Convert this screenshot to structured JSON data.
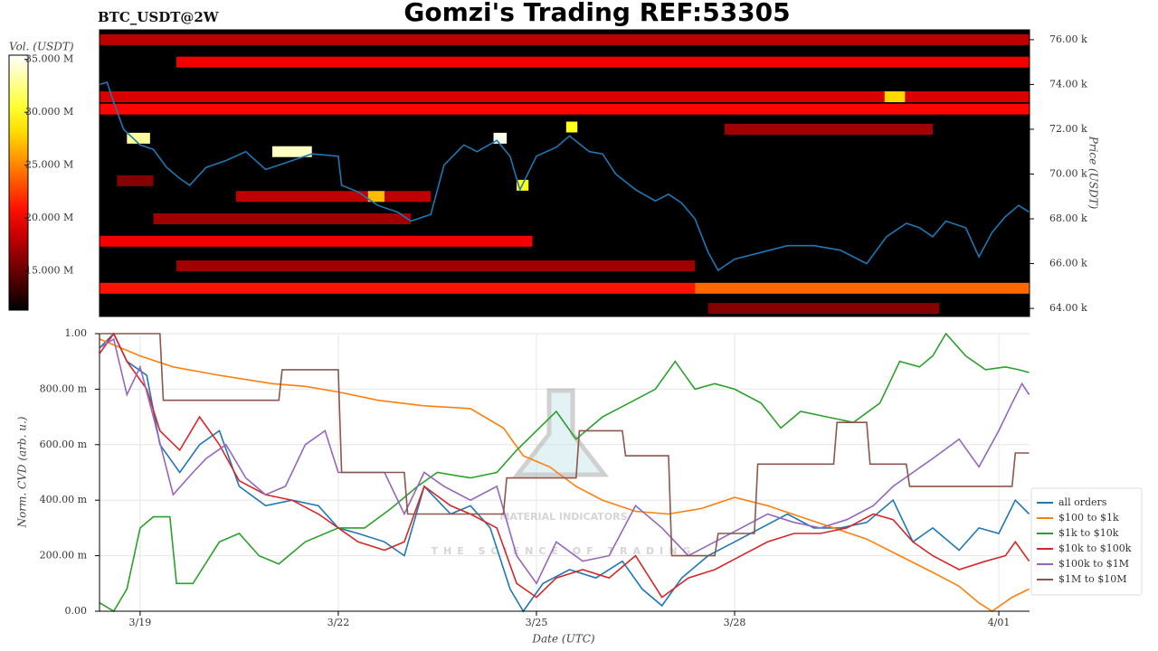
{
  "chart_data": [
    {
      "type": "heatmap",
      "title": "Gomzi's Trading REF:53305",
      "subtitle": "BTC_USDT@2W",
      "xlim": [
        18.385,
        32.465
      ],
      "ylim": [
        63640,
        76440
      ],
      "yticks": [
        {
          "value": 64000,
          "label": "64.00 k"
        },
        {
          "value": 66000,
          "label": "66.00 k"
        },
        {
          "value": 68000,
          "label": "68.00 k"
        },
        {
          "value": 70000,
          "label": "70.00 k"
        },
        {
          "value": 72000,
          "label": "72.00 k"
        },
        {
          "value": 74000,
          "label": "74.00 k"
        },
        {
          "value": 76000,
          "label": "76.00 k"
        }
      ],
      "ylabel": "Price (USDT)",
      "colorbar": {
        "label": "Vol. (USDT)",
        "lim": [
          11300000,
          35400000
        ],
        "ticks": [
          {
            "value": 15000000,
            "label": "15.000 M"
          },
          {
            "value": 20000000,
            "label": "20.000 M"
          },
          {
            "value": 25000000,
            "label": "25.000 M"
          },
          {
            "value": 30000000,
            "label": "30.000 M"
          },
          {
            "value": 35000000,
            "label": "35.000 M"
          }
        ]
      },
      "bands": [
        {
          "price": 76000,
          "x": [
            18.385,
            32.465
          ],
          "volume": 18000000
        },
        {
          "price": 75000,
          "x": [
            19.55,
            32.465
          ],
          "volume": 20000000
        },
        {
          "price": 73450,
          "x": [
            18.385,
            32.465
          ],
          "volume": 19000000
        },
        {
          "price": 72900,
          "x": [
            18.385,
            32.465
          ],
          "volume": 20500000
        },
        {
          "price": 72000,
          "x": [
            27.85,
            31.0
          ],
          "volume": 17000000
        },
        {
          "price": 67000,
          "x": [
            18.385,
            24.94
          ],
          "volume": 20000000
        },
        {
          "price": 65900,
          "x": [
            19.55,
            27.4
          ],
          "volume": 17000000
        },
        {
          "price": 64900,
          "x": [
            18.385,
            27.4
          ],
          "volume": 21000000
        },
        {
          "price": 64900,
          "x": [
            27.4,
            32.465
          ],
          "volume": 24000000
        },
        {
          "price": 68000,
          "x": [
            19.2,
            23.1
          ],
          "volume": 17000000
        },
        {
          "price": 69000,
          "x": [
            20.45,
            23.4
          ],
          "volume": 18000000
        },
        {
          "price": 69700,
          "x": [
            18.65,
            19.2
          ],
          "volume": 16000000
        },
        {
          "price": 64000,
          "x": [
            27.6,
            31.1
          ],
          "volume": 16000000
        },
        {
          "price": 73450,
          "x": [
            30.27,
            30.58
          ],
          "volume": 28000000
        },
        {
          "price": 71600,
          "x": [
            18.8,
            19.15
          ],
          "volume": 33000000
        },
        {
          "price": 71000,
          "x": [
            21.0,
            21.6
          ],
          "volume": 34000000
        },
        {
          "price": 71600,
          "x": [
            24.35,
            24.55
          ],
          "volume": 35000000
        },
        {
          "price": 72100,
          "x": [
            25.45,
            25.62
          ],
          "volume": 30000000
        },
        {
          "price": 69500,
          "x": [
            24.7,
            24.88
          ],
          "volume": 30000000
        },
        {
          "price": 69000,
          "x": [
            22.45,
            22.7
          ],
          "volume": 27000000
        }
      ],
      "price": {
        "color": "#1f77b4",
        "x": [
          18.39,
          18.5,
          18.6,
          18.75,
          19.0,
          19.2,
          19.4,
          19.6,
          19.75,
          20.0,
          20.3,
          20.6,
          20.9,
          21.2,
          21.6,
          22.0,
          22.05,
          22.3,
          22.6,
          22.9,
          23.1,
          23.4,
          23.6,
          23.9,
          24.1,
          24.4,
          24.6,
          24.75,
          25.0,
          25.3,
          25.5,
          25.8,
          26.0,
          26.2,
          26.5,
          26.8,
          27.0,
          27.2,
          27.4,
          27.6,
          27.75,
          28.0,
          28.4,
          28.8,
          29.2,
          29.6,
          30.0,
          30.3,
          30.6,
          30.8,
          31.0,
          31.2,
          31.5,
          31.7,
          31.9,
          32.1,
          32.3,
          32.46
        ],
        "values": [
          74000,
          74100,
          73200,
          72000,
          71300,
          71100,
          70300,
          69800,
          69500,
          70300,
          70600,
          71000,
          70200,
          70500,
          70900,
          70800,
          69500,
          69200,
          68600,
          68300,
          67900,
          68200,
          70400,
          71300,
          71000,
          71500,
          70800,
          69300,
          70800,
          71200,
          71700,
          71000,
          70900,
          70000,
          69300,
          68800,
          69100,
          68700,
          68000,
          66500,
          65700,
          66200,
          66500,
          66800,
          66800,
          66600,
          66000,
          67200,
          67800,
          67600,
          67200,
          67900,
          67600,
          66300,
          67400,
          68100,
          68600,
          68300
        ]
      }
    },
    {
      "type": "line",
      "xlabel": "Date (UTC)",
      "ylabel": "Norm. CVD (arb. u.)",
      "watermark": [
        "MATERIAL INDICATORS",
        "THE SCIENCE OF TRADING"
      ],
      "xlim": [
        18.385,
        32.465
      ],
      "ylim": [
        0,
        1
      ],
      "xticks": [
        {
          "value": 19,
          "label": "3/19"
        },
        {
          "value": 22,
          "label": "3/22"
        },
        {
          "value": 25,
          "label": "3/25"
        },
        {
          "value": 28,
          "label": "3/28"
        },
        {
          "value": 32,
          "label": "4/01"
        }
      ],
      "yticks": [
        {
          "value": 0,
          "label": "0.00"
        },
        {
          "value": 0.2,
          "label": "200.00 m"
        },
        {
          "value": 0.4,
          "label": "400.00 m"
        },
        {
          "value": 0.6,
          "label": "600.00 m"
        },
        {
          "value": 0.8,
          "label": "800.00 m"
        },
        {
          "value": 1,
          "label": "1.00"
        }
      ],
      "grid": true,
      "legend": "lower right",
      "series": [
        {
          "name": "all orders",
          "color": "#1f77b4",
          "x": [
            18.39,
            18.6,
            18.8,
            19.1,
            19.3,
            19.6,
            19.9,
            20.2,
            20.5,
            20.9,
            21.3,
            21.7,
            22.0,
            22.3,
            22.7,
            23.0,
            23.3,
            23.7,
            24.0,
            24.3,
            24.6,
            24.8,
            25.1,
            25.5,
            25.9,
            26.3,
            26.6,
            26.9,
            27.2,
            27.6,
            28.0,
            28.4,
            28.8,
            29.2,
            29.6,
            30.0,
            30.4,
            30.7,
            31.0,
            31.4,
            31.7,
            32.0,
            32.25,
            32.46
          ],
          "values": [
            0.95,
            1.0,
            0.9,
            0.85,
            0.6,
            0.5,
            0.6,
            0.65,
            0.45,
            0.38,
            0.4,
            0.38,
            0.3,
            0.28,
            0.25,
            0.2,
            0.45,
            0.35,
            0.38,
            0.3,
            0.08,
            0.0,
            0.1,
            0.15,
            0.12,
            0.18,
            0.08,
            0.02,
            0.12,
            0.2,
            0.25,
            0.3,
            0.35,
            0.3,
            0.3,
            0.32,
            0.4,
            0.25,
            0.3,
            0.22,
            0.3,
            0.28,
            0.4,
            0.35
          ]
        },
        {
          "name": "$100 to $1k",
          "color": "#ff7f0e",
          "x": [
            18.39,
            19.0,
            19.5,
            20.2,
            21.0,
            21.5,
            22.0,
            22.6,
            23.3,
            24.0,
            24.5,
            24.8,
            25.2,
            25.6,
            26.0,
            26.5,
            27.0,
            27.5,
            28.0,
            28.5,
            29.0,
            29.5,
            30.0,
            30.5,
            31.0,
            31.4,
            31.7,
            31.9,
            32.2,
            32.46
          ],
          "values": [
            0.98,
            0.92,
            0.88,
            0.85,
            0.82,
            0.81,
            0.79,
            0.76,
            0.74,
            0.73,
            0.66,
            0.56,
            0.52,
            0.45,
            0.4,
            0.36,
            0.35,
            0.37,
            0.41,
            0.38,
            0.34,
            0.3,
            0.26,
            0.2,
            0.14,
            0.09,
            0.03,
            0.0,
            0.05,
            0.08
          ]
        },
        {
          "name": "$1k to $10k",
          "color": "#2ca02c",
          "x": [
            18.39,
            18.6,
            18.8,
            19.0,
            19.2,
            19.45,
            19.55,
            19.8,
            20.2,
            20.5,
            20.8,
            21.1,
            21.5,
            22.0,
            22.4,
            22.8,
            23.2,
            23.5,
            24.0,
            24.4,
            24.7,
            25.0,
            25.3,
            25.6,
            26.0,
            26.4,
            26.8,
            27.1,
            27.4,
            27.7,
            28.0,
            28.4,
            28.7,
            29.0,
            29.4,
            29.8,
            30.2,
            30.5,
            30.8,
            31.0,
            31.2,
            31.5,
            31.8,
            32.1,
            32.3,
            32.46
          ],
          "values": [
            0.03,
            0.0,
            0.08,
            0.3,
            0.34,
            0.34,
            0.1,
            0.1,
            0.25,
            0.28,
            0.2,
            0.17,
            0.25,
            0.3,
            0.3,
            0.37,
            0.45,
            0.5,
            0.48,
            0.5,
            0.58,
            0.65,
            0.72,
            0.62,
            0.7,
            0.75,
            0.8,
            0.9,
            0.8,
            0.82,
            0.8,
            0.75,
            0.66,
            0.72,
            0.7,
            0.68,
            0.75,
            0.9,
            0.88,
            0.92,
            1.0,
            0.92,
            0.87,
            0.88,
            0.87,
            0.86
          ]
        },
        {
          "name": "$10k to $100k",
          "color": "#d62728",
          "x": [
            18.39,
            18.6,
            18.8,
            19.1,
            19.3,
            19.6,
            19.9,
            20.2,
            20.5,
            20.9,
            21.3,
            21.7,
            22.0,
            22.3,
            22.7,
            23.0,
            23.3,
            23.7,
            24.0,
            24.4,
            24.7,
            25.0,
            25.3,
            25.7,
            26.1,
            26.5,
            26.9,
            27.3,
            27.7,
            28.1,
            28.5,
            28.9,
            29.3,
            29.7,
            30.1,
            30.4,
            30.7,
            31.0,
            31.4,
            31.8,
            32.1,
            32.25,
            32.46
          ],
          "values": [
            0.93,
            1.0,
            0.9,
            0.8,
            0.65,
            0.58,
            0.7,
            0.6,
            0.47,
            0.42,
            0.4,
            0.35,
            0.3,
            0.25,
            0.22,
            0.25,
            0.45,
            0.38,
            0.35,
            0.3,
            0.1,
            0.05,
            0.12,
            0.15,
            0.12,
            0.2,
            0.05,
            0.12,
            0.15,
            0.2,
            0.25,
            0.28,
            0.28,
            0.3,
            0.35,
            0.33,
            0.25,
            0.2,
            0.15,
            0.18,
            0.2,
            0.25,
            0.18
          ]
        },
        {
          "name": "$100k to $1M",
          "color": "#9467bd",
          "x": [
            18.39,
            18.6,
            18.8,
            19.0,
            19.2,
            19.5,
            19.8,
            20.0,
            20.3,
            20.6,
            20.9,
            21.2,
            21.5,
            21.8,
            22.0,
            22.3,
            22.7,
            23.0,
            23.3,
            23.6,
            24.0,
            24.4,
            24.7,
            25.0,
            25.3,
            25.7,
            26.1,
            26.5,
            26.9,
            27.3,
            27.7,
            28.1,
            28.5,
            28.9,
            29.3,
            29.7,
            30.1,
            30.4,
            30.7,
            31.0,
            31.4,
            31.7,
            32.0,
            32.2,
            32.35,
            32.46
          ],
          "values": [
            0.95,
            0.98,
            0.78,
            0.88,
            0.7,
            0.42,
            0.5,
            0.55,
            0.6,
            0.48,
            0.42,
            0.45,
            0.6,
            0.65,
            0.5,
            0.5,
            0.5,
            0.35,
            0.5,
            0.45,
            0.4,
            0.45,
            0.2,
            0.1,
            0.25,
            0.18,
            0.2,
            0.38,
            0.3,
            0.2,
            0.25,
            0.3,
            0.35,
            0.32,
            0.3,
            0.33,
            0.38,
            0.45,
            0.5,
            0.55,
            0.62,
            0.52,
            0.65,
            0.75,
            0.82,
            0.78
          ]
        },
        {
          "name": "$1M to $10M",
          "color": "#8c564b",
          "x": [
            18.39,
            19.3,
            19.35,
            20.5,
            21.1,
            21.15,
            22.0,
            22.05,
            23.0,
            23.05,
            24.5,
            24.55,
            25.6,
            25.65,
            26.3,
            26.35,
            27.0,
            27.05,
            27.7,
            27.75,
            28.3,
            28.35,
            29.5,
            29.55,
            30.0,
            30.05,
            30.6,
            30.65,
            32.2,
            32.25,
            32.46
          ],
          "values": [
            1.0,
            1.0,
            0.76,
            0.76,
            0.76,
            0.87,
            0.87,
            0.5,
            0.5,
            0.35,
            0.35,
            0.48,
            0.48,
            0.65,
            0.65,
            0.56,
            0.56,
            0.2,
            0.2,
            0.28,
            0.28,
            0.53,
            0.53,
            0.68,
            0.68,
            0.53,
            0.53,
            0.45,
            0.45,
            0.57,
            0.57
          ]
        }
      ]
    }
  ]
}
